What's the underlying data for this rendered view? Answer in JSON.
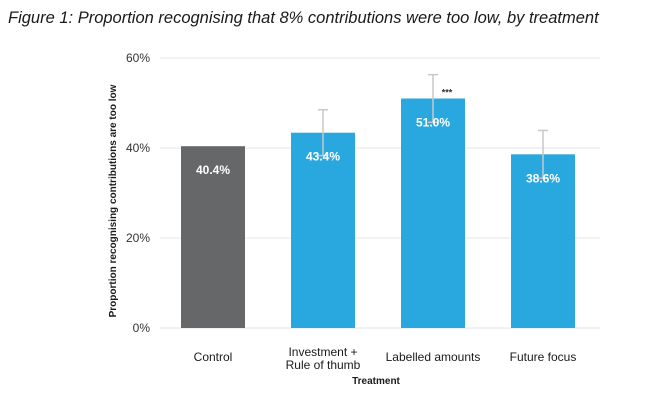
{
  "title": "Figure 1: Proportion recognising that 8% contributions were too low, by treatment",
  "chart_data": {
    "type": "bar",
    "title": "Figure 1: Proportion recognising that 8% contributions were too low, by treatment",
    "xlabel": "Treatment",
    "ylabel": "Proportion recognising contributions are too low",
    "ylim": [
      0,
      60
    ],
    "yticks": [
      0,
      20,
      40,
      60
    ],
    "ytick_labels": [
      "0%",
      "20%",
      "40%",
      "60%"
    ],
    "grid": true,
    "categories": [
      [
        "Control"
      ],
      [
        "Investment +",
        "Rule of thumb"
      ],
      [
        "Labelled amounts"
      ],
      [
        "Future focus"
      ]
    ],
    "values": [
      40.4,
      43.4,
      51.0,
      38.6
    ],
    "value_labels": [
      "40.4%",
      "43.4%",
      "51.0%",
      "38.6%"
    ],
    "error_upper": [
      null,
      48.5,
      56.3,
      43.9
    ],
    "error_lower": [
      null,
      38.3,
      45.7,
      33.3
    ],
    "significance": [
      null,
      null,
      "***",
      null
    ],
    "colors": [
      "#666769",
      "#29a8e0",
      "#29a8e0",
      "#29a8e0"
    ],
    "grid_color": "#e4e4e4",
    "error_color": "#c8c8c8"
  }
}
